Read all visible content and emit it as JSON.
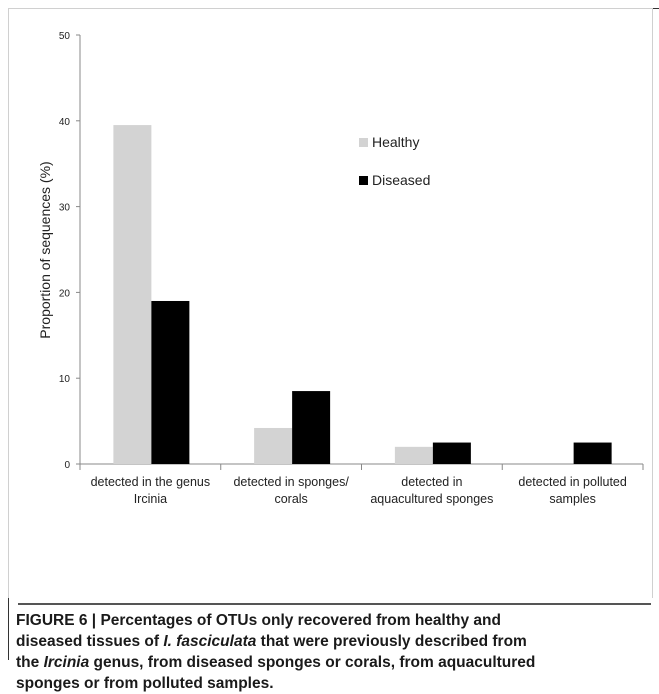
{
  "chart_data": {
    "type": "bar",
    "ylabel": "Proportion of sequences (%)",
    "ylim": [
      0,
      50
    ],
    "yticks": [
      "0",
      "10",
      "20",
      "30",
      "40",
      "50"
    ],
    "ytick_values": [
      0,
      10,
      20,
      30,
      40,
      50
    ],
    "grid": false,
    "legend_position": "top-center",
    "categories": [
      [
        "detected in the genus",
        "Ircinia"
      ],
      [
        "detected in sponges/",
        "corals"
      ],
      [
        "detected in",
        "aquacultured sponges"
      ],
      [
        "detected in polluted",
        "samples"
      ]
    ],
    "series": [
      {
        "name": "Healthy",
        "color": "#d3d3d3",
        "values": [
          39.5,
          4.2,
          2.0,
          0
        ]
      },
      {
        "name": "Diseased",
        "color": "#000000",
        "values": [
          19.0,
          8.5,
          2.5,
          2.5
        ]
      }
    ]
  },
  "caption": {
    "label": "FIGURE 6 | ",
    "line1": "Percentages of OTUs only recovered from healthy and",
    "line2a": "diseased tissues of ",
    "line2b": "I. fasciculata",
    "line2c": " that were previously described from",
    "line3a": "the ",
    "line3b": "Ircinia",
    "line3c": " genus, from diseased sponges or corals, from aquacultured",
    "line4": "sponges or from polluted samples."
  }
}
